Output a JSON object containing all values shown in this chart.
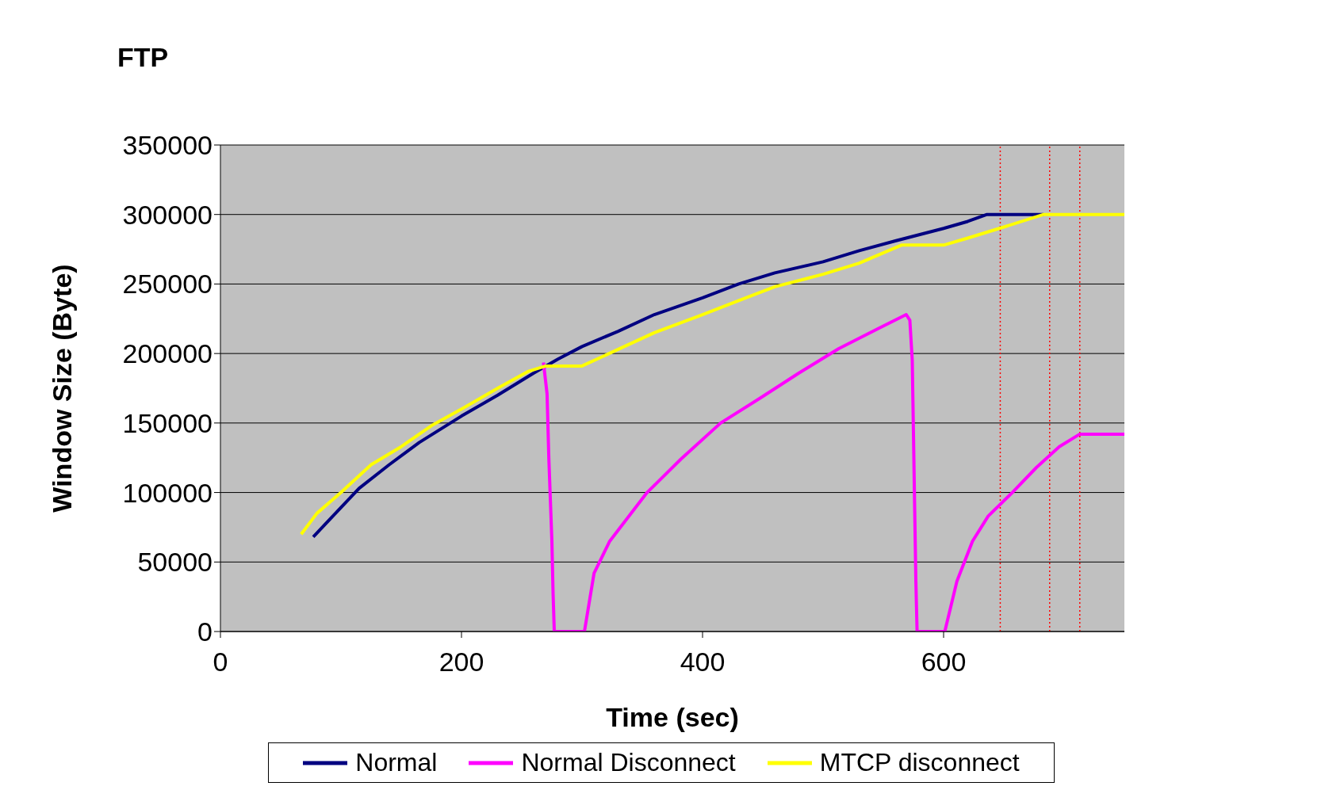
{
  "chart_data": {
    "type": "line",
    "title": "FTP",
    "xlabel": "Time (sec)",
    "ylabel": "Window Size (Byte)",
    "xlim": [
      0,
      750
    ],
    "xticks": [
      0,
      200,
      400,
      600
    ],
    "ylim": [
      0,
      350000
    ],
    "yticks": [
      0,
      50000,
      100000,
      150000,
      200000,
      250000,
      300000,
      350000
    ],
    "grid": "y",
    "legend": "bottom",
    "marker": "none",
    "line_style": "solid",
    "ref_lines": [
      {
        "axis": "x",
        "value": 647,
        "color": "#ff0000",
        "line_style": "dotted"
      },
      {
        "axis": "x",
        "value": 688,
        "color": "#ff0000",
        "line_style": "dotted"
      },
      {
        "axis": "x",
        "value": 713,
        "color": "#ff0000",
        "line_style": "dotted"
      }
    ],
    "series": [
      {
        "name": "Normal",
        "color": "#000080",
        "x": [
          77,
          90,
          115,
          140,
          165,
          200,
          230,
          260,
          280,
          300,
          330,
          360,
          400,
          430,
          460,
          500,
          530,
          560,
          600,
          620,
          636,
          683
        ],
        "values": [
          68000,
          80000,
          103000,
          120000,
          136000,
          155000,
          170000,
          186000,
          196000,
          205000,
          216000,
          228000,
          240000,
          250000,
          258000,
          266000,
          274000,
          281000,
          290000,
          295000,
          300000,
          300000
        ]
      },
      {
        "name": "Normal Disconnect",
        "color": "#ff00ff",
        "x": [
          268,
          271,
          272.5,
          275,
          276,
          277,
          302,
          310,
          323,
          354,
          382,
          415,
          448,
          480,
          513,
          546,
          569,
          572,
          574,
          575,
          577,
          578,
          601,
          611,
          624,
          637,
          657,
          677,
          696,
          713,
          750
        ],
        "values": [
          193500,
          171000,
          124000,
          65000,
          27000,
          0,
          0,
          42000,
          65000,
          100000,
          124000,
          150000,
          168000,
          186000,
          203500,
          218000,
          228000,
          224000,
          195000,
          142000,
          36000,
          0,
          0,
          36000,
          65000,
          83000,
          100000,
          118000,
          133000,
          142000,
          142000
        ]
      },
      {
        "name": "MTCP disconnect",
        "color": "#ffff00",
        "x": [
          67,
          80,
          100,
          125,
          150,
          175,
          200,
          230,
          255,
          270,
          300,
          330,
          360,
          400,
          430,
          460,
          500,
          530,
          565,
          600,
          620,
          650,
          683,
          750
        ],
        "values": [
          70000,
          85000,
          100000,
          120000,
          133000,
          148000,
          160000,
          175000,
          187000,
          191000,
          191000,
          203000,
          215000,
          228000,
          238000,
          248000,
          257000,
          265000,
          278000,
          278000,
          283000,
          291000,
          300000,
          300000
        ]
      }
    ]
  }
}
